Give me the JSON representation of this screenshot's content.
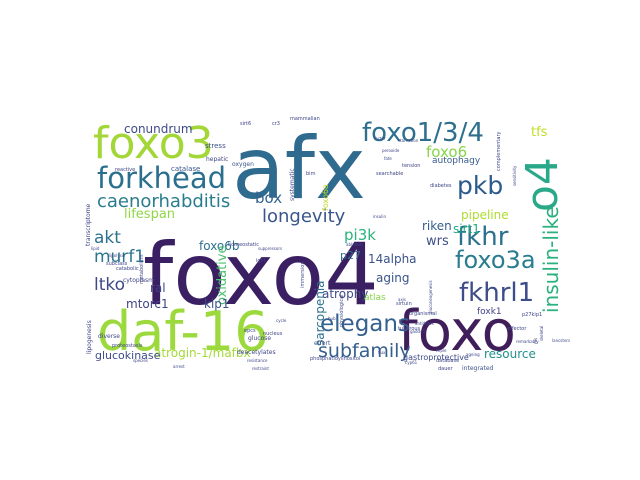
{
  "words": [
    {
      "text": "foxo4",
      "color": "#3b1f63"
    },
    {
      "text": "afx",
      "color": "#2f6a8f"
    },
    {
      "text": "daf-16",
      "color": "#9bd93c"
    },
    {
      "text": "foxo",
      "color": "#3f1e5a"
    },
    {
      "text": "foxo3",
      "color": "#a3d637"
    },
    {
      "text": "o4",
      "color": "#2aa98a"
    },
    {
      "text": "foxo1/3/4",
      "color": "#2e6e8e"
    },
    {
      "text": "forkhead",
      "color": "#2b6f8e"
    },
    {
      "text": "pkb",
      "color": "#2c5a8c"
    },
    {
      "text": "caenorhabditis",
      "color": "#2a7d8e"
    },
    {
      "text": "longevity",
      "color": "#39568c"
    },
    {
      "text": "fkhr",
      "color": "#2b718e"
    },
    {
      "text": "insulin-like",
      "color": "#2bb07f"
    },
    {
      "text": "foxo3a",
      "color": "#2a7c8e"
    },
    {
      "text": "fkhrl1",
      "color": "#3d4d8a"
    },
    {
      "text": "elegans",
      "color": "#34618d"
    },
    {
      "text": "akt",
      "color": "#2c728e"
    },
    {
      "text": "murf1",
      "color": "#2b758e"
    },
    {
      "text": "subfamily",
      "color": "#355f8d"
    },
    {
      "text": "ltko",
      "color": "#3f4889"
    },
    {
      "text": "foxo6",
      "color": "#86d549"
    },
    {
      "text": "box",
      "color": "#33638d"
    },
    {
      "text": "pi3k",
      "color": "#2db27d"
    },
    {
      "text": "wrs",
      "color": "#3c508b"
    },
    {
      "text": "riken",
      "color": "#355e8d"
    },
    {
      "text": "tfs",
      "color": "#c2df23"
    },
    {
      "text": "conundrum",
      "color": "#3e4a89"
    },
    {
      "text": "14alpha",
      "color": "#3b528b"
    },
    {
      "text": "pipeline",
      "color": "#addc30"
    },
    {
      "text": "sirt1",
      "color": "#22a884"
    },
    {
      "text": "aging",
      "color": "#3a538b"
    },
    {
      "text": "lifespan",
      "color": "#8fd744"
    },
    {
      "text": "atrophy",
      "color": "#3e4989"
    },
    {
      "text": "foxo6b",
      "color": "#2d708e"
    },
    {
      "text": "oxidative",
      "color": "#4ac16d"
    },
    {
      "text": "mtorc1",
      "color": "#404588"
    },
    {
      "text": "kip1",
      "color": "#3b528b"
    },
    {
      "text": "ral",
      "color": "#414487"
    },
    {
      "text": "sarcopenia",
      "color": "#2d718e"
    },
    {
      "text": "atrogin-1/mafbx",
      "color": "#a2da37"
    },
    {
      "text": "glucokinase",
      "color": "#3e4a89"
    },
    {
      "text": "resource",
      "color": "#21918c"
    },
    {
      "text": "foxo6a",
      "color": "#bade28"
    },
    {
      "text": "p27",
      "color": "#2d708e"
    },
    {
      "text": "autophagy",
      "color": "#365c8d"
    },
    {
      "text": "gastroprotective",
      "color": "#3e4a89"
    },
    {
      "text": "foxk1",
      "color": "#404387"
    },
    {
      "text": "atlas",
      "color": "#86d549"
    },
    {
      "text": "stress",
      "color": "#3b528b"
    },
    {
      "text": "hepatic",
      "color": "#3e4989"
    },
    {
      "text": "catalase",
      "color": "#3a548c"
    },
    {
      "text": "cytoplasm",
      "color": "#3f4788"
    },
    {
      "text": "diverse",
      "color": "#3e4a89"
    },
    {
      "text": "integrated",
      "color": "#3b528b"
    },
    {
      "text": "glucose",
      "color": "#3f4788"
    },
    {
      "text": "deacetylates",
      "color": "#3f4788"
    },
    {
      "text": "phosphatidylinositol",
      "color": "#3f4788"
    },
    {
      "text": "effort",
      "color": "#3b528b"
    },
    {
      "text": "sirt6",
      "color": "#3f4788"
    },
    {
      "text": "cr3",
      "color": "#3f4788"
    },
    {
      "text": "mammalian",
      "color": "#3f4788"
    },
    {
      "text": "oxygen",
      "color": "#3b528b"
    },
    {
      "text": "reactive",
      "color": "#3f4788"
    },
    {
      "text": "tension",
      "color": "#3f4788"
    },
    {
      "text": "diabetes",
      "color": "#3f4788"
    },
    {
      "text": "searchable",
      "color": "#3f4788"
    },
    {
      "text": "peroxide",
      "color": "#3f4788"
    },
    {
      "text": "starvation",
      "color": "#3f4788"
    },
    {
      "text": "systematic",
      "color": "#3e4a89"
    },
    {
      "text": "catabolic",
      "color": "#3f4788"
    },
    {
      "text": "subclass",
      "color": "#3f4788"
    },
    {
      "text": "metabolism",
      "color": "#3f4788"
    },
    {
      "text": "homeostatic",
      "color": "#3f4788"
    },
    {
      "text": "igf-i",
      "color": "#3f4788"
    },
    {
      "text": "epcs",
      "color": "#3f4788"
    },
    {
      "text": "nucleus",
      "color": "#3f4788"
    },
    {
      "text": "proteostasis",
      "color": "#3f4788"
    },
    {
      "text": "transcriptome",
      "color": "#3f4788"
    },
    {
      "text": "immersion",
      "color": "#3f4788"
    },
    {
      "text": "physiological",
      "color": "#3f4788"
    },
    {
      "text": "sirtuin",
      "color": "#3f4788"
    },
    {
      "text": "tuberous",
      "color": "#3f4788"
    },
    {
      "text": "organismal",
      "color": "#3f4788"
    },
    {
      "text": "database",
      "color": "#3f4788"
    },
    {
      "text": "dauer",
      "color": "#3f4788"
    },
    {
      "text": "p27kip1",
      "color": "#3f4788"
    },
    {
      "text": "effector",
      "color": "#3f4788"
    },
    {
      "text": "lipogenesis",
      "color": "#3f4788"
    },
    {
      "text": "cycle",
      "color": "#3f4788"
    },
    {
      "text": "triple",
      "color": "#3f4788"
    },
    {
      "text": "remarkably",
      "color": "#3f4788"
    },
    {
      "text": "lancsters",
      "color": "#3f4788"
    },
    {
      "text": "cyp61",
      "color": "#3f4788"
    },
    {
      "text": "ras",
      "color": "#3f4788"
    },
    {
      "text": "skeletal",
      "color": "#3f4788"
    },
    {
      "text": "antidotes",
      "color": "#3f4788"
    },
    {
      "text": "restraint",
      "color": "#3f4788"
    },
    {
      "text": "arrest",
      "color": "#3f4788"
    },
    {
      "text": "suppressors",
      "color": "#3f4788"
    },
    {
      "text": "ablation",
      "color": "#3f4788"
    },
    {
      "text": "bim",
      "color": "#3f4788"
    },
    {
      "text": "gadd45",
      "color": "#3f4788"
    },
    {
      "text": "lipid",
      "color": "#3f4788"
    },
    {
      "text": "lipolysis",
      "color": "#3f4788"
    },
    {
      "text": "insulin",
      "color": "#3f4788"
    },
    {
      "text": "complementary",
      "color": "#3f4788"
    },
    {
      "text": "sensitivity",
      "color": "#3f4788"
    },
    {
      "text": "factor",
      "color": "#3f4788"
    },
    {
      "text": "resistance",
      "color": "#3f4788"
    },
    {
      "text": "axis",
      "color": "#3f4788"
    },
    {
      "text": "fate",
      "color": "#3f4788"
    },
    {
      "text": "hub",
      "color": "#3f4788"
    },
    {
      "text": "species",
      "color": "#3f4788"
    },
    {
      "text": "flux",
      "color": "#3f4788"
    },
    {
      "text": "ageing",
      "color": "#3f4788"
    },
    {
      "text": "gluconeogenesis",
      "color": "#3f4788"
    }
  ]
}
